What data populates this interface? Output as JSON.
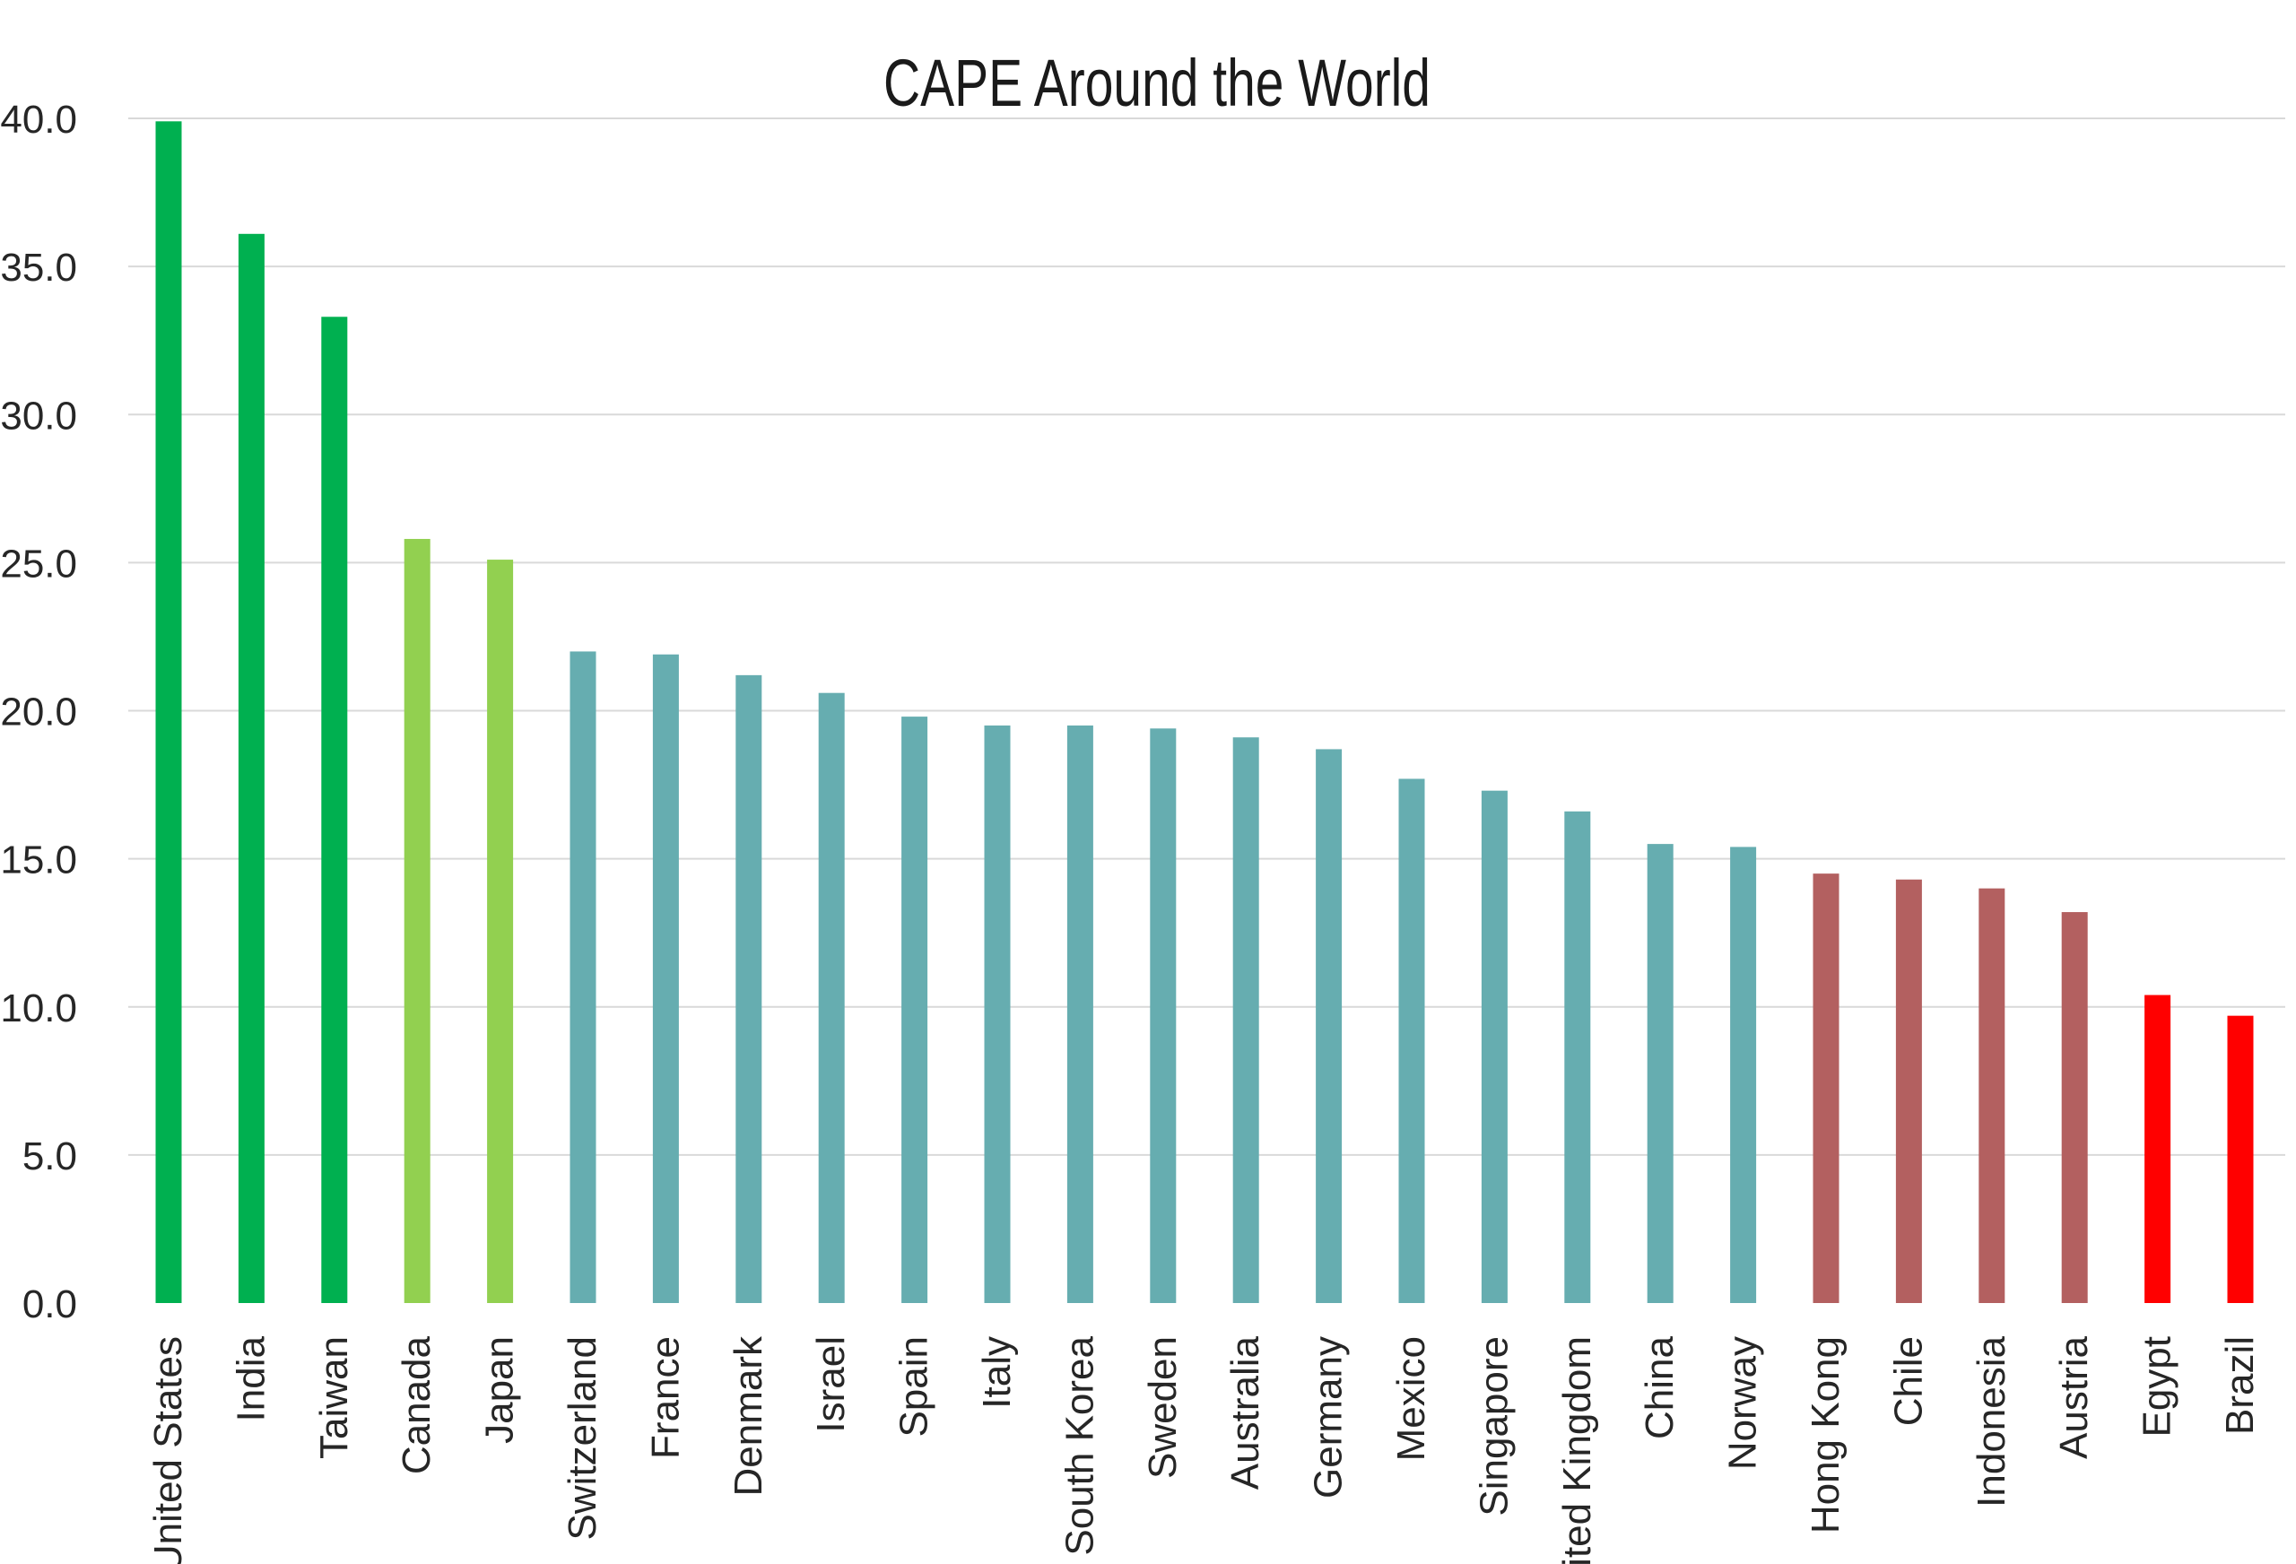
{
  "chart_data": {
    "type": "bar",
    "title": "CAPE Around the World",
    "xlabel": "",
    "ylabel": "",
    "ylim": [
      0,
      40
    ],
    "y_ticks": [
      "0.0",
      "5.0",
      "10.0",
      "15.0",
      "20.0",
      "25.0",
      "30.0",
      "35.0",
      "40.0"
    ],
    "grid": true,
    "legend": "none",
    "categories": [
      "United States",
      "India",
      "Taiwan",
      "Canada",
      "Japan",
      "Switzerland",
      "France",
      "Denmark",
      "Israel",
      "Spain",
      "Italy",
      "South Korea",
      "Sweden",
      "Australia",
      "Germany",
      "Mexico",
      "Singapore",
      "United Kingdom",
      "China",
      "Norway",
      "Hong Kong",
      "Chile",
      "Indonesia",
      "Austria",
      "Egypt",
      "Brazil"
    ],
    "values": [
      39.9,
      36.1,
      33.3,
      25.8,
      25.1,
      22.0,
      21.9,
      21.2,
      20.6,
      19.8,
      19.5,
      19.5,
      19.4,
      19.1,
      18.7,
      17.7,
      17.3,
      16.6,
      15.5,
      15.4,
      14.5,
      14.3,
      14.0,
      13.2,
      10.4,
      9.7
    ],
    "bar_colors": [
      "#00b050",
      "#00b050",
      "#00b050",
      "#92d050",
      "#92d050",
      "#66adb0",
      "#66adb0",
      "#66adb0",
      "#66adb0",
      "#66adb0",
      "#66adb0",
      "#66adb0",
      "#66adb0",
      "#66adb0",
      "#66adb0",
      "#66adb0",
      "#66adb0",
      "#66adb0",
      "#66adb0",
      "#66adb0",
      "#b36060",
      "#b36060",
      "#b36060",
      "#b36060",
      "#ff0000",
      "#ff0000"
    ]
  }
}
